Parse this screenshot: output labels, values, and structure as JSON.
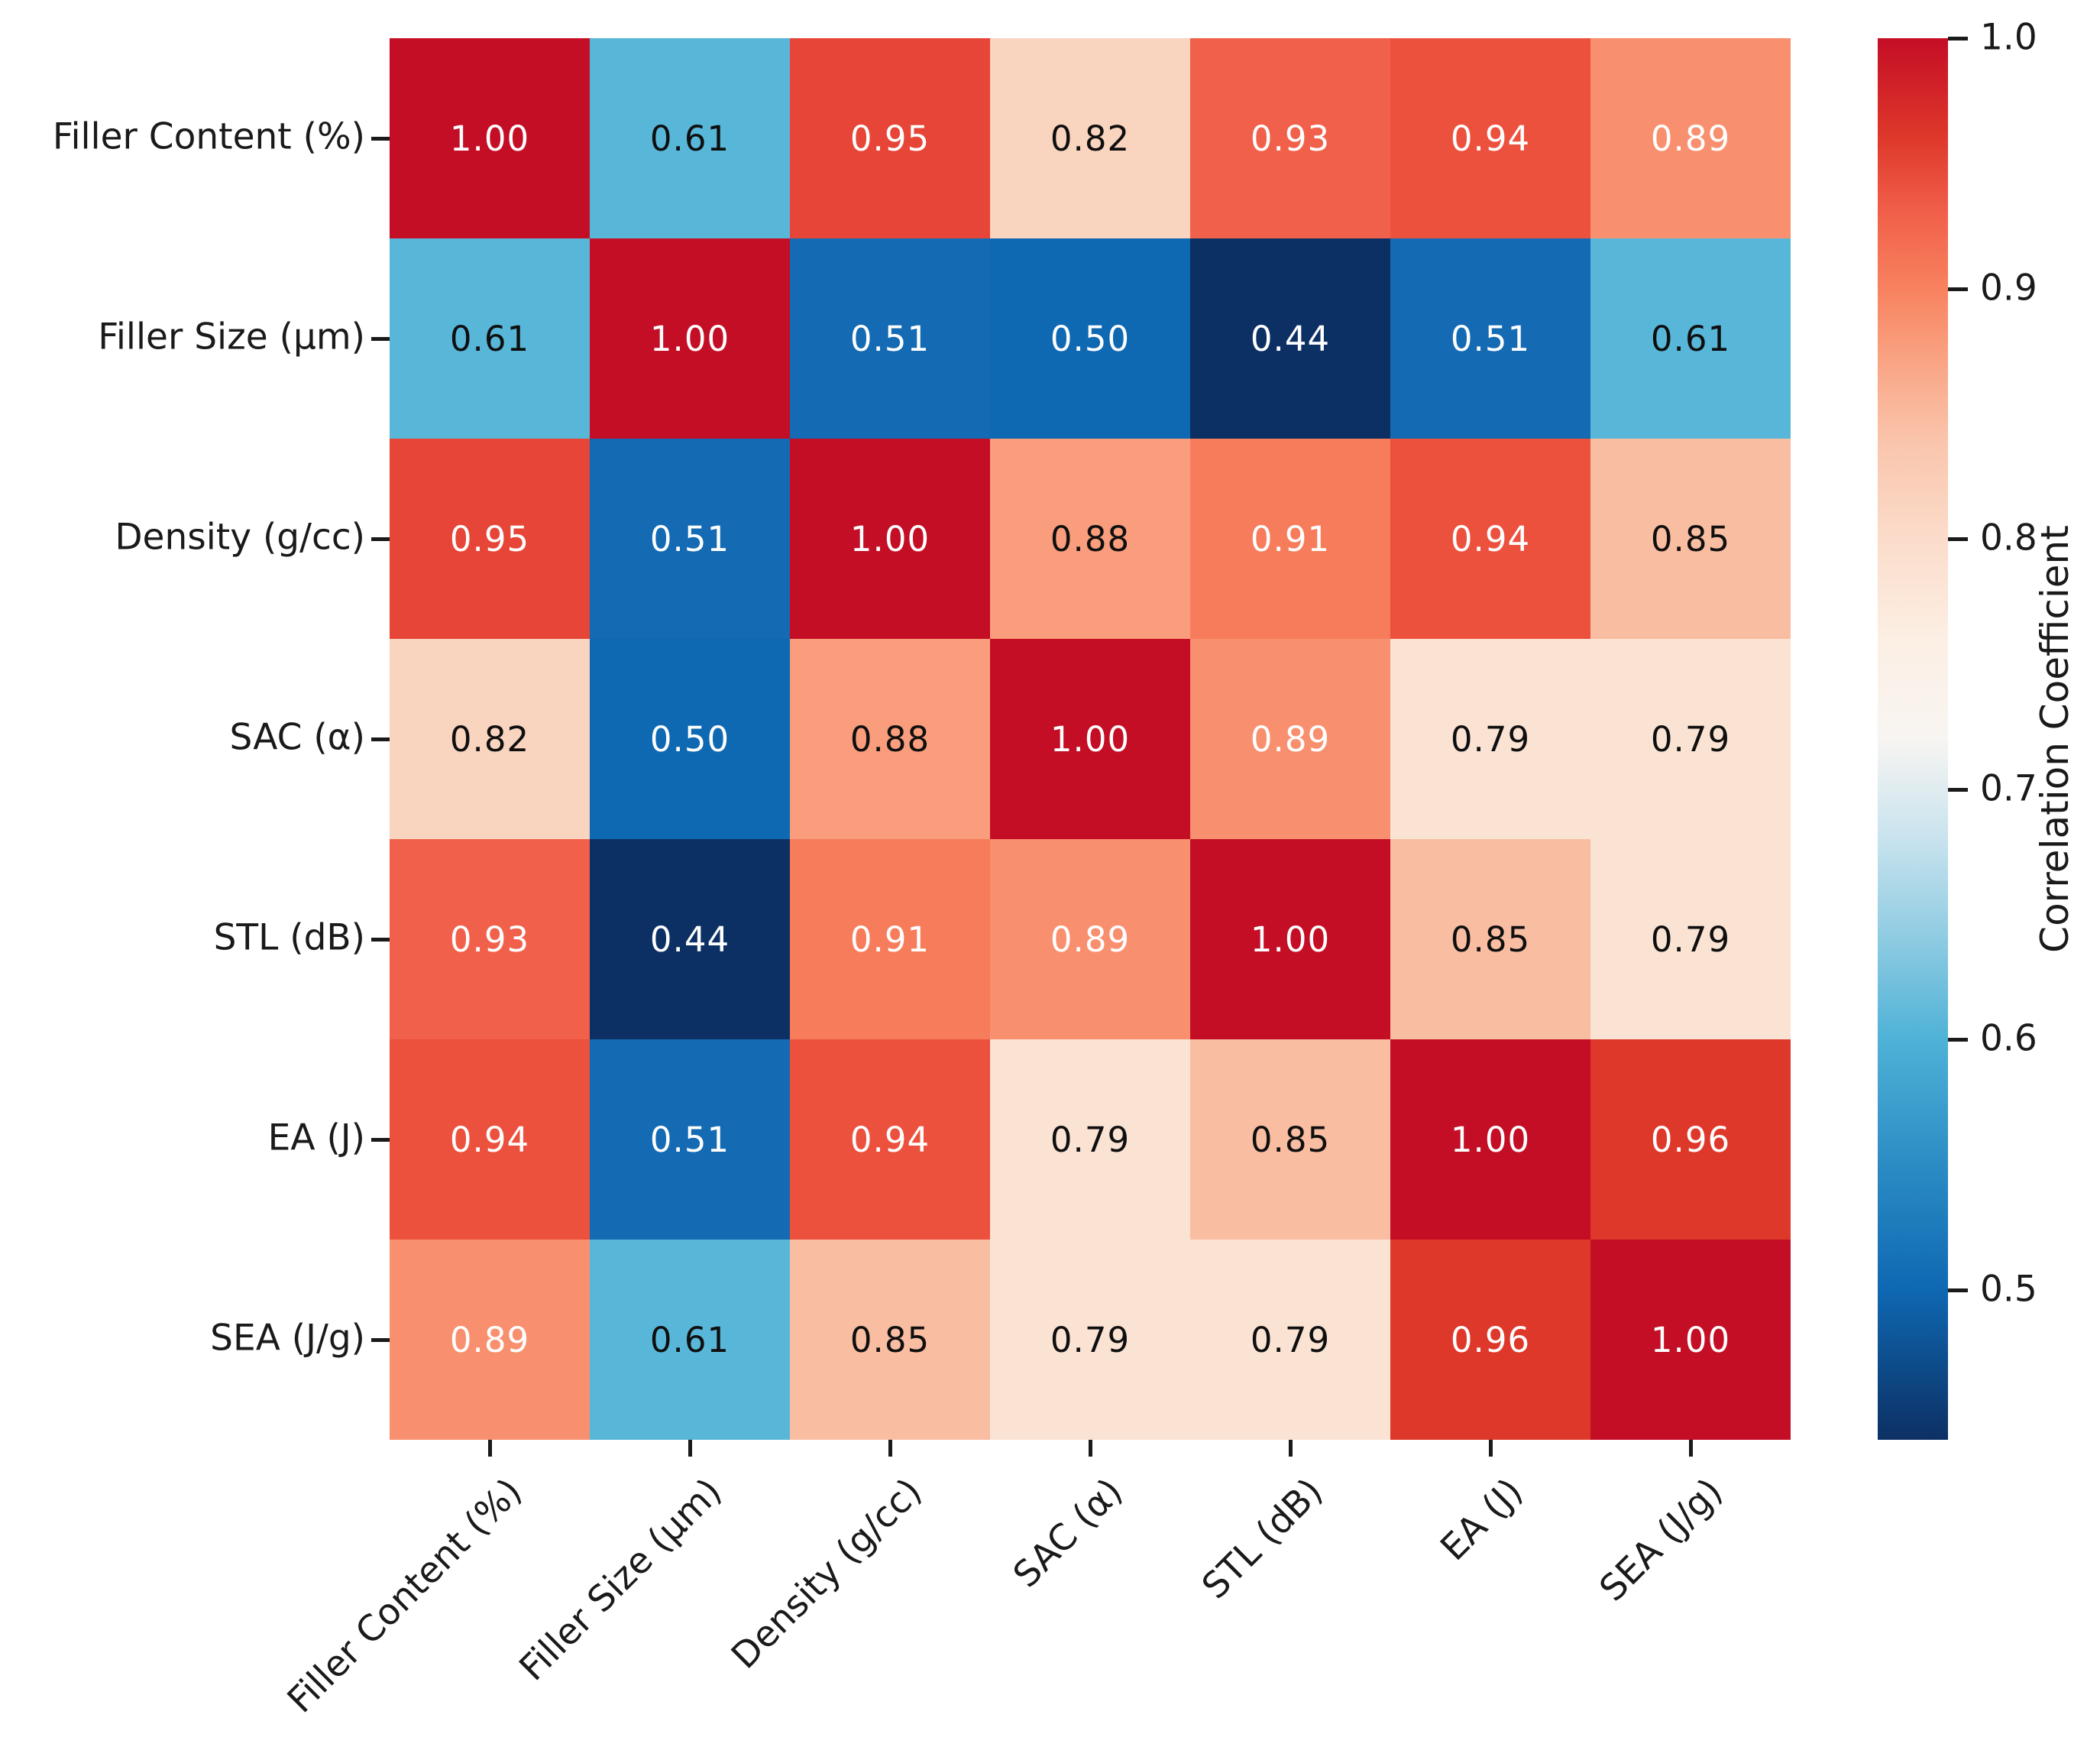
{
  "chart_data": {
    "type": "heatmap",
    "title": "",
    "categories": [
      "Filler Content (%)",
      "Filler Size (μm)",
      "Density (g/cc)",
      "SAC (α)",
      "STL (dB)",
      "EA (J)",
      "SEA (J/g)"
    ],
    "matrix": [
      [
        1.0,
        0.61,
        0.95,
        0.82,
        0.93,
        0.94,
        0.89
      ],
      [
        0.61,
        1.0,
        0.51,
        0.5,
        0.44,
        0.51,
        0.61
      ],
      [
        0.95,
        0.51,
        1.0,
        0.88,
        0.91,
        0.94,
        0.85
      ],
      [
        0.82,
        0.5,
        0.88,
        1.0,
        0.89,
        0.79,
        0.79
      ],
      [
        0.93,
        0.44,
        0.91,
        0.89,
        1.0,
        0.85,
        0.79
      ],
      [
        0.94,
        0.51,
        0.94,
        0.79,
        0.85,
        1.0,
        0.96
      ],
      [
        0.89,
        0.61,
        0.85,
        0.79,
        0.79,
        0.96,
        1.0
      ]
    ],
    "matrix_display": [
      [
        "1.00",
        "0.61",
        "0.95",
        "0.82",
        "0.93",
        "0.94",
        "0.89"
      ],
      [
        "0.61",
        "1.00",
        "0.51",
        "0.50",
        "0.44",
        "0.51",
        "0.61"
      ],
      [
        "0.95",
        "0.51",
        "1.00",
        "0.88",
        "0.91",
        "0.94",
        "0.85"
      ],
      [
        "0.82",
        "0.50",
        "0.88",
        "1.00",
        "0.89",
        "0.79",
        "0.79"
      ],
      [
        "0.93",
        "0.44",
        "0.91",
        "0.89",
        "1.00",
        "0.85",
        "0.79"
      ],
      [
        "0.94",
        "0.51",
        "0.94",
        "0.79",
        "0.85",
        "1.00",
        "0.96"
      ],
      [
        "0.89",
        "0.61",
        "0.85",
        "0.79",
        "0.79",
        "0.96",
        "1.00"
      ]
    ],
    "value_colors": {
      "0.44": "#0d3064",
      "0.50": "#0f68b2",
      "0.51": "#146ab3",
      "0.61": "#58b7d9",
      "0.79": "#fbe3d4",
      "0.82": "#f9d4bf",
      "0.85": "#f9bda2",
      "0.88": "#f99d7c",
      "0.89": "#f8906f",
      "0.91": "#f67c5b",
      "0.93": "#f1604a",
      "0.94": "#ec513e",
      "0.95": "#e64537",
      "0.96": "#de382b",
      "1.00": "#c40e25"
    },
    "black_text_values": [
      "0.61",
      "0.79",
      "0.82",
      "0.85",
      "0.88"
    ],
    "annotation_black": "#0f0f0f",
    "annotation_white": "#ffffff",
    "layout_hints": {
      "grid": "off",
      "legend_position": "right-colorbar",
      "x_tick_rotation_deg": 45
    },
    "colorbar": {
      "label": "Correlation Coefficient",
      "vmin": 0.44,
      "vmax": 1.0,
      "ticks": [
        "1.0",
        "0.9",
        "0.8",
        "0.7",
        "0.6",
        "0.5"
      ],
      "tick_values": [
        1.0,
        0.9,
        0.8,
        0.7,
        0.6,
        0.5
      ],
      "gradient_stops": [
        {
          "pos": "0%",
          "color": "#c40e25"
        },
        {
          "pos": "7.1%",
          "color": "#de382b"
        },
        {
          "pos": "12.5%",
          "color": "#f1604a"
        },
        {
          "pos": "17.9%",
          "color": "#f8825f"
        },
        {
          "pos": "23.2%",
          "color": "#f9a585"
        },
        {
          "pos": "28.6%",
          "color": "#fac4ab"
        },
        {
          "pos": "35.7%",
          "color": "#fbdcca"
        },
        {
          "pos": "42.9%",
          "color": "#fcefe4"
        },
        {
          "pos": "50%",
          "color": "#f8f5f2"
        },
        {
          "pos": "57.1%",
          "color": "#c8e3ee"
        },
        {
          "pos": "64.3%",
          "color": "#8ecbe2"
        },
        {
          "pos": "71.4%",
          "color": "#4fb2d7"
        },
        {
          "pos": "80.4%",
          "color": "#2b8cc4"
        },
        {
          "pos": "89.3%",
          "color": "#0f68b2"
        },
        {
          "pos": "94.6%",
          "color": "#0d4c8b"
        },
        {
          "pos": "100%",
          "color": "#0d3064"
        }
      ]
    }
  }
}
